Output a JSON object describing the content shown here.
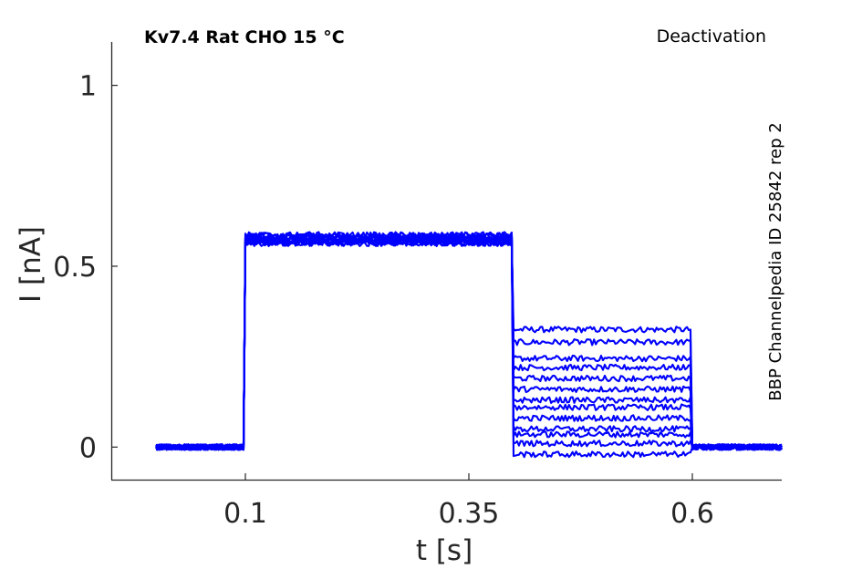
{
  "chart_data": {
    "type": "line",
    "title": "Kv7.4  Rat  CHO  15 °C",
    "protocol": "Deactivation",
    "source": "BBP Channelpedia ID 25842 rep 2",
    "xlabel": "t [s]",
    "ylabel": "I [nA]",
    "xlim": [
      -0.05,
      0.7
    ],
    "ylim": [
      -0.09,
      1.12
    ],
    "x_ticks": [
      {
        "value": 0.1,
        "label": "0.1"
      },
      {
        "value": 0.35,
        "label": "0.35"
      },
      {
        "value": 0.6,
        "label": "0.6"
      }
    ],
    "y_ticks": [
      {
        "value": 0,
        "label": "0"
      },
      {
        "value": 0.5,
        "label": "0.5"
      },
      {
        "value": 1,
        "label": "1"
      }
    ],
    "grid": false,
    "legend": "none",
    "color": "#0000ff",
    "series_count": 13,
    "segments": [
      {
        "t_start": 0.0,
        "t_end": 0.099,
        "level_nA": 0.0
      },
      {
        "t_start": 0.099,
        "t_end": 0.4,
        "level_nA": 0.575
      },
      {
        "t_start": 0.4,
        "t_end": 0.6,
        "levels_nA": [
          0.325,
          0.29,
          0.245,
          0.22,
          0.19,
          0.16,
          0.13,
          0.11,
          0.08,
          0.05,
          0.035,
          0.01,
          -0.02
        ]
      },
      {
        "t_start": 0.6,
        "t_end": 0.7,
        "level_nA": 0.0
      }
    ],
    "noise_nA": 0.008
  }
}
